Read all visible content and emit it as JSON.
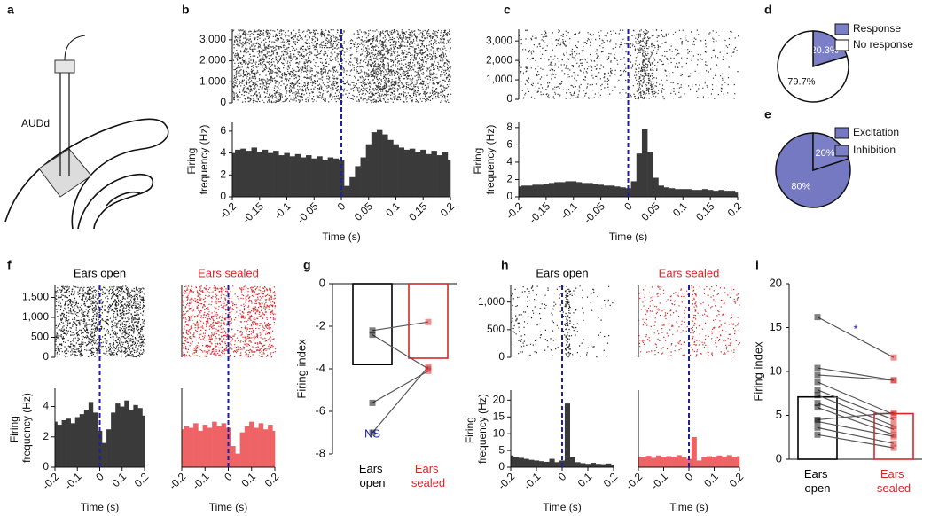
{
  "panel_labels": [
    "a",
    "b",
    "c",
    "d",
    "e",
    "f",
    "g",
    "h",
    "i"
  ],
  "diagram": {
    "label": "AUDd"
  },
  "chart_data": [
    {
      "type": "psth",
      "xlabel": "Time (s)",
      "ylabel": "Firing frequency (Hz)",
      "color": "#3a3a3a",
      "x": [
        -0.2,
        -0.19,
        -0.18,
        -0.17,
        -0.16,
        -0.15,
        -0.14,
        -0.13,
        -0.12,
        -0.11,
        -0.1,
        -0.09,
        -0.08,
        -0.07,
        -0.06,
        -0.05,
        -0.04,
        -0.03,
        -0.02,
        -0.01,
        0,
        0.01,
        0.02,
        0.03,
        0.04,
        0.05,
        0.06,
        0.07,
        0.08,
        0.09,
        0.1,
        0.11,
        0.12,
        0.13,
        0.14,
        0.15,
        0.16,
        0.17,
        0.18,
        0.19,
        0.2
      ],
      "values": [
        4.0,
        4.3,
        4.4,
        4.2,
        4.5,
        4.1,
        4.3,
        4.0,
        4.2,
        3.8,
        4.0,
        3.7,
        3.9,
        3.6,
        3.8,
        3.5,
        3.7,
        3.4,
        3.6,
        3.5,
        3.4,
        1.0,
        1.8,
        2.8,
        3.6,
        4.8,
        5.9,
        6.1,
        5.7,
        5.2,
        4.8,
        4.5,
        4.3,
        4.4,
        4.1,
        4.3,
        3.9,
        4.2,
        3.8,
        4.1,
        3.4
      ],
      "xlim": [
        -0.2,
        0.2
      ],
      "xticks": [
        -0.2,
        -0.15,
        -0.1,
        -0.05,
        0,
        0.05,
        0.1,
        0.15,
        0.2
      ],
      "ylim": [
        0,
        6.8
      ],
      "yticks": [
        0,
        2,
        4,
        6
      ],
      "vline": 0,
      "vline_color": "#1f1fa0",
      "raster": {
        "color": "#333333",
        "ylim": [
          0,
          3500
        ],
        "yticks": [
          0,
          {
            "value": 1000,
            "label": "1,000"
          },
          {
            "value": 2000,
            "label": "2,000"
          },
          {
            "value": 3000,
            "label": "3,000"
          }
        ]
      }
    },
    {
      "type": "psth",
      "xlabel": "Time (s)",
      "ylabel": "Firing frequency (Hz)",
      "color": "#3a3a3a",
      "x": [
        -0.2,
        -0.19,
        -0.18,
        -0.17,
        -0.16,
        -0.15,
        -0.14,
        -0.13,
        -0.12,
        -0.11,
        -0.1,
        -0.09,
        -0.08,
        -0.07,
        -0.06,
        -0.05,
        -0.04,
        -0.03,
        -0.02,
        -0.01,
        0,
        0.01,
        0.02,
        0.03,
        0.04,
        0.05,
        0.06,
        0.07,
        0.08,
        0.09,
        0.1,
        0.11,
        0.12,
        0.13,
        0.14,
        0.15,
        0.16,
        0.17,
        0.18,
        0.19,
        0.2
      ],
      "values": [
        1.2,
        1.3,
        1.3,
        1.4,
        1.4,
        1.5,
        1.6,
        1.7,
        1.7,
        1.8,
        1.8,
        1.7,
        1.6,
        1.6,
        1.5,
        1.4,
        1.3,
        1.3,
        1.2,
        1.1,
        1.0,
        1.8,
        5.0,
        7.8,
        5.2,
        2.2,
        1.3,
        1.1,
        1.0,
        0.9,
        0.9,
        0.9,
        0.8,
        0.8,
        0.9,
        0.8,
        0.7,
        0.8,
        0.7,
        0.7,
        0.5
      ],
      "xlim": [
        -0.2,
        0.2
      ],
      "xticks": [
        -0.2,
        -0.15,
        -0.1,
        -0.05,
        0,
        0.05,
        0.1,
        0.15,
        0.2
      ],
      "ylim": [
        0,
        8.6
      ],
      "yticks": [
        0,
        2,
        4,
        6,
        8
      ],
      "vline": 0,
      "vline_color": "#1f1fa0",
      "raster": {
        "color": "#333333",
        "ylim": [
          0,
          3600
        ],
        "yticks": [
          0,
          {
            "value": 1000,
            "label": "1,000"
          },
          {
            "value": 2000,
            "label": "2,000"
          },
          {
            "value": 3000,
            "label": "3,000"
          }
        ]
      }
    },
    {
      "type": "pie",
      "categories": [
        "Response",
        "No response"
      ],
      "values": [
        20.3,
        79.7
      ],
      "value_labels": [
        "20.3%",
        "79.7%"
      ],
      "colors": [
        "#7b7fc8",
        "#ffffff"
      ]
    },
    {
      "type": "pie",
      "categories": [
        "Excitation",
        "Inhibition"
      ],
      "values": [
        80,
        20
      ],
      "value_labels": [
        "80%",
        "20%"
      ],
      "colors": [
        "#7479c2",
        "#7b7fc8"
      ]
    },
    {
      "type": "psth",
      "title": "Ears open",
      "title_color": "#000000",
      "xlabel": "Time (s)",
      "ylabel": "Firing frequency (Hz)",
      "color": "#3a3a3a",
      "x": [
        -0.2,
        -0.18,
        -0.16,
        -0.14,
        -0.12,
        -0.1,
        -0.08,
        -0.06,
        -0.04,
        -0.02,
        0,
        0.02,
        0.04,
        0.06,
        0.08,
        0.1,
        0.12,
        0.14,
        0.16,
        0.18,
        0.2
      ],
      "values": [
        3.0,
        2.8,
        3.1,
        3.2,
        2.9,
        3.3,
        3.5,
        3.8,
        4.3,
        3.6,
        2.4,
        1.6,
        2.5,
        3.6,
        4.2,
        4.0,
        4.4,
        3.8,
        4.1,
        3.9,
        3.4
      ],
      "xlim": [
        -0.2,
        0.2
      ],
      "xticks": [
        -0.2,
        -0.1,
        0,
        0.1,
        0.2
      ],
      "ylim": [
        0,
        5.2
      ],
      "yticks": [
        0,
        2,
        4
      ],
      "vline": 0,
      "vline_color": "#1f1fa0",
      "raster": {
        "color": "#222222",
        "ylim": [
          0,
          1800
        ],
        "yticks": [
          0,
          500,
          {
            "value": 1000,
            "label": "1,000"
          },
          {
            "value": 1500,
            "label": "1,500"
          }
        ]
      }
    },
    {
      "type": "psth",
      "title": "Ears sealed",
      "title_color": "#d62728",
      "xlabel": "Time (s)",
      "color": "#ee6466",
      "x": [
        -0.2,
        -0.18,
        -0.16,
        -0.14,
        -0.12,
        -0.1,
        -0.08,
        -0.06,
        -0.04,
        -0.02,
        0,
        0.02,
        0.04,
        0.06,
        0.08,
        0.1,
        0.12,
        0.14,
        0.16,
        0.18,
        0.2
      ],
      "values": [
        2.5,
        2.7,
        2.6,
        2.9,
        2.4,
        2.8,
        2.6,
        3.0,
        2.7,
        2.9,
        2.6,
        1.4,
        0.9,
        2.3,
        2.7,
        3.0,
        2.6,
        2.9,
        2.5,
        2.8,
        2.4
      ],
      "xlim": [
        -0.2,
        0.2
      ],
      "xticks": [
        -0.2,
        -0.1,
        0,
        0.1,
        0.2
      ],
      "ylim": [
        0,
        5.2
      ],
      "vline": 0,
      "vline_color": "#1f1fa0",
      "raster": {
        "color": "#d62728",
        "ylim": [
          0,
          1800
        ]
      }
    },
    {
      "type": "paired",
      "ylabel": "Firing index",
      "categories": [
        "Ears open",
        "Ears sealed"
      ],
      "colors": [
        "#000000",
        "#d62728"
      ],
      "values": [
        -3.8,
        -3.5
      ],
      "pairs": [
        [
          -2.2,
          -1.8
        ],
        [
          -2.4,
          -4.0
        ],
        [
          -5.6,
          -4.1
        ],
        [
          -7.0,
          -3.9
        ]
      ],
      "ylim": [
        -8,
        0
      ],
      "yticks": [
        -8,
        -6,
        -4,
        -2,
        0
      ],
      "annotation": "NS",
      "annotation_color": "#1f1fa0"
    },
    {
      "type": "psth",
      "title": "Ears open",
      "title_color": "#000000",
      "xlabel": "Time (s)",
      "ylabel": "Firing frequency (Hz)",
      "color": "#3a3a3a",
      "x": [
        -0.2,
        -0.18,
        -0.16,
        -0.14,
        -0.12,
        -0.1,
        -0.08,
        -0.06,
        -0.04,
        -0.02,
        0,
        0.02,
        0.04,
        0.06,
        0.08,
        0.1,
        0.12,
        0.14,
        0.16,
        0.18,
        0.2
      ],
      "values": [
        3.5,
        3.0,
        2.8,
        2.5,
        2.2,
        2.0,
        1.8,
        1.6,
        2.5,
        1.5,
        2.0,
        19.0,
        3.0,
        1.5,
        1.2,
        1.0,
        1.3,
        1.0,
        0.9,
        1.1,
        0.8
      ],
      "xlim": [
        -0.2,
        0.2
      ],
      "xticks": [
        -0.2,
        -0.1,
        0,
        0.1,
        0.2
      ],
      "ylim": [
        0,
        23
      ],
      "yticks": [
        0,
        5,
        10,
        15,
        20
      ],
      "vline": 0,
      "vline_color": "#1f1fa0",
      "raster": {
        "color": "#222222",
        "ylim": [
          0,
          1300
        ],
        "yticks": [
          0,
          500,
          {
            "value": 1000,
            "label": "1,000"
          }
        ]
      }
    },
    {
      "type": "psth",
      "title": "Ears sealed",
      "title_color": "#d62728",
      "xlabel": "Time (s)",
      "color": "#ee6466",
      "x": [
        -0.2,
        -0.18,
        -0.16,
        -0.14,
        -0.12,
        -0.1,
        -0.08,
        -0.06,
        -0.04,
        -0.02,
        0,
        0.02,
        0.04,
        0.06,
        0.08,
        0.1,
        0.12,
        0.14,
        0.16,
        0.18,
        0.2
      ],
      "values": [
        3.2,
        3.0,
        3.4,
        2.8,
        3.5,
        3.1,
        3.3,
        2.9,
        3.6,
        3.0,
        2.5,
        9.0,
        2.0,
        3.1,
        3.3,
        2.9,
        3.5,
        3.2,
        3.6,
        3.1,
        3.3
      ],
      "xlim": [
        -0.2,
        0.2
      ],
      "xticks": [
        -0.2,
        -0.1,
        0,
        0.1,
        0.2
      ],
      "ylim": [
        0,
        23
      ],
      "vline": 0,
      "vline_color": "#1f1fa0",
      "raster": {
        "color": "#d62728",
        "ylim": [
          0,
          1300
        ]
      }
    },
    {
      "type": "paired",
      "ylabel": "Firing index",
      "categories": [
        "Ears open",
        "Ears sealed"
      ],
      "colors": [
        "#000000",
        "#d62728"
      ],
      "values": [
        7.1,
        5.2
      ],
      "pairs": [
        [
          16.2,
          11.6
        ],
        [
          10.4,
          9.0
        ],
        [
          9.6,
          9.0
        ],
        [
          8.8,
          5.1
        ],
        [
          7.9,
          4.5
        ],
        [
          7.3,
          3.8
        ],
        [
          6.4,
          3.4
        ],
        [
          5.9,
          2.8
        ],
        [
          4.5,
          5.3
        ],
        [
          4.3,
          2.6
        ],
        [
          3.6,
          1.8
        ],
        [
          2.8,
          1.3
        ]
      ],
      "ylim": [
        0,
        20
      ],
      "yticks": [
        0,
        5,
        10,
        15,
        20
      ],
      "annotation": "*",
      "annotation_color": "#1f1fa0"
    }
  ]
}
